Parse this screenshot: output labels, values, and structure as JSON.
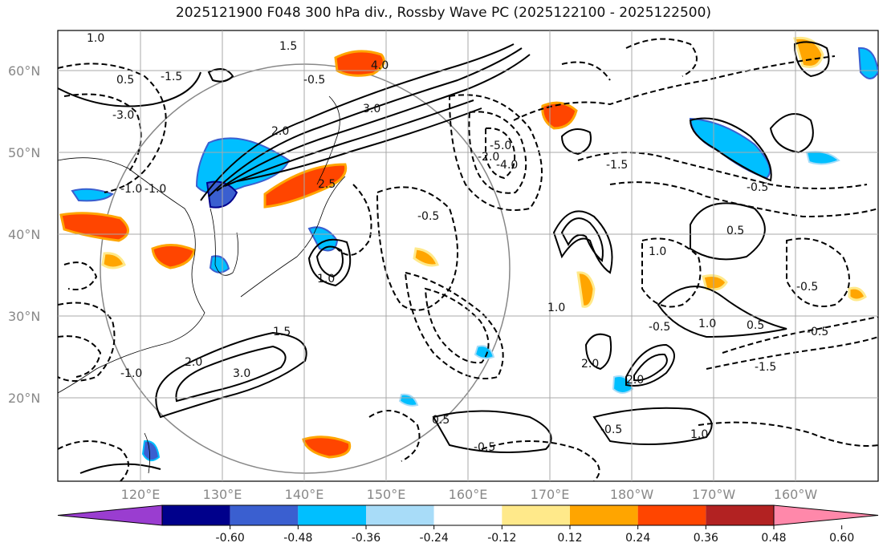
{
  "title": "2025121900 F048 300 hPa div., Rossby Wave PC (2025122100 - 2025122500)",
  "map": {
    "lat_labels": [
      "60°N",
      "50°N",
      "40°N",
      "30°N",
      "20°N"
    ],
    "lon_labels": [
      "120°E",
      "130°E",
      "140°E",
      "150°E",
      "160°E",
      "170°E",
      "180°W",
      "170°W",
      "160°W"
    ],
    "contour_labels": [
      "1.0",
      "1.5",
      "2.0",
      "2.5",
      "3.0",
      "4.0",
      "0.5",
      "-0.5",
      "-1.0",
      "-1.5",
      "-2.0",
      "-3.0",
      "-4.0",
      "-5.0",
      "1.0",
      "2.0",
      "1.5",
      "3.0",
      "-0.5",
      "-1.0",
      "0.5",
      "1.0",
      "2.0",
      "-0.5",
      "-1.5",
      "-0.5",
      "-1.0",
      "0.5",
      "1.0",
      "-0.5",
      "1.0",
      "0.5",
      "-0.5",
      "-1.5",
      "-0.5",
      "-0.5",
      "1.0",
      "2.0"
    ]
  },
  "colorbar": {
    "ticks": [
      "-0.60",
      "-0.48",
      "-0.36",
      "-0.24",
      "-0.12",
      "0.12",
      "0.24",
      "0.36",
      "0.48",
      "0.60"
    ],
    "colors": [
      "#9a3dd0",
      "#00008b",
      "#3a5fd0",
      "#00bfff",
      "#a8dcf8",
      "#ffffff",
      "#ffe98a",
      "#ffa500",
      "#ff4500",
      "#b22222",
      "#ff88aa"
    ]
  }
}
